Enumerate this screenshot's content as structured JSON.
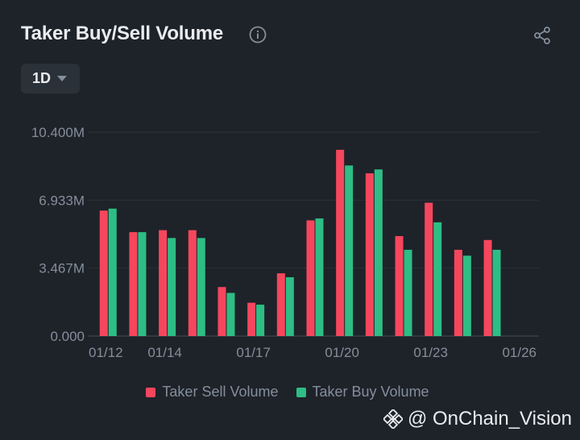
{
  "header": {
    "title": "Taker Buy/Sell Volume"
  },
  "interval": {
    "label": "1D"
  },
  "colors": {
    "sell": "#f6465d",
    "buy": "#2ebd85",
    "grid": "#2b3139",
    "axis_text": "#848e9c"
  },
  "watermark": {
    "text": "@ OnChain_Vision"
  },
  "chart_data": {
    "type": "bar",
    "title": "Taker Buy/Sell Volume",
    "xlabel": "",
    "ylabel": "",
    "ylim": [
      0,
      10.4
    ],
    "y_unit": "M",
    "y_ticks": [
      "0.000",
      "3.467M",
      "6.933M",
      "10.400M"
    ],
    "y_tick_values": [
      0,
      3.467,
      6.933,
      10.4
    ],
    "grid": true,
    "categories": [
      "01/12",
      "01/13",
      "01/14",
      "01/15",
      "01/16",
      "01/17",
      "01/18",
      "01/19",
      "01/20",
      "01/21",
      "01/22",
      "01/23",
      "01/24",
      "01/25"
    ],
    "x_tick_labels": [
      "01/12",
      "01/14",
      "01/17",
      "01/20",
      "01/23",
      "01/26"
    ],
    "series": [
      {
        "name": "Taker Sell Volume",
        "values": [
          6.4,
          5.3,
          5.4,
          5.4,
          2.5,
          1.7,
          3.2,
          5.9,
          9.5,
          8.3,
          5.1,
          6.8,
          4.4,
          4.9
        ]
      },
      {
        "name": "Taker Buy Volume",
        "values": [
          6.5,
          5.3,
          5.0,
          5.0,
          2.2,
          1.6,
          3.0,
          6.0,
          8.7,
          8.5,
          4.4,
          5.8,
          4.1,
          4.4
        ]
      }
    ],
    "extra_last_bar": {
      "category": "01/25",
      "note": ""
    }
  }
}
